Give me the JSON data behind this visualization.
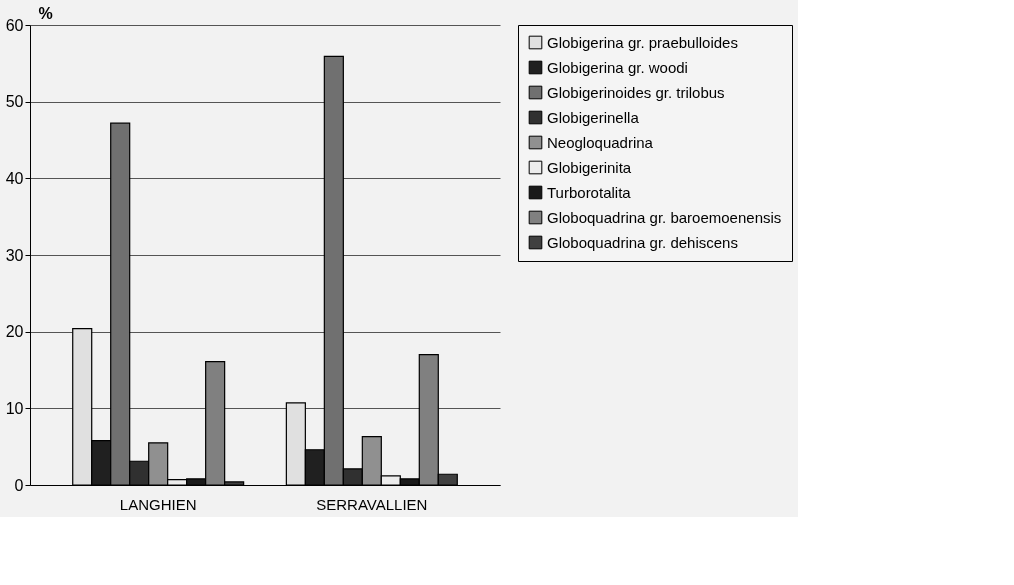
{
  "chart_data": {
    "type": "bar",
    "ylabel": "%",
    "categories": [
      "LANGHIEN",
      "SERRAVALLIEN"
    ],
    "series": [
      {
        "name": "Globigerina gr. praebulloides",
        "color": "#e0e0e0",
        "values": [
          20.4,
          10.7
        ]
      },
      {
        "name": "Globigerina gr. woodi",
        "color": "#202020",
        "values": [
          5.8,
          4.6
        ]
      },
      {
        "name": "Globigerinoides gr. trilobus",
        "color": "#707070",
        "values": [
          47.2,
          55.9
        ]
      },
      {
        "name": "Globigerinella",
        "color": "#303030",
        "values": [
          3.1,
          2.1
        ]
      },
      {
        "name": "Neogloquadrina",
        "color": "#909090",
        "values": [
          5.5,
          6.3
        ]
      },
      {
        "name": "Globigerinita",
        "color": "#ececec",
        "values": [
          0.7,
          1.2
        ]
      },
      {
        "name": "Turborotalita",
        "color": "#1a1a1a",
        "values": [
          0.8,
          0.8
        ]
      },
      {
        "name": "Globoquadrina gr. baroemoenensis",
        "color": "#808080",
        "values": [
          16.1,
          17.0
        ]
      },
      {
        "name": "Globoquadrina gr. dehiscens",
        "color": "#404040",
        "values": [
          0.4,
          1.4
        ]
      }
    ],
    "ylim": [
      0,
      60
    ],
    "yticks": [
      0,
      10,
      20,
      30,
      40,
      50,
      60
    ],
    "grid": "y",
    "legend": "right"
  }
}
